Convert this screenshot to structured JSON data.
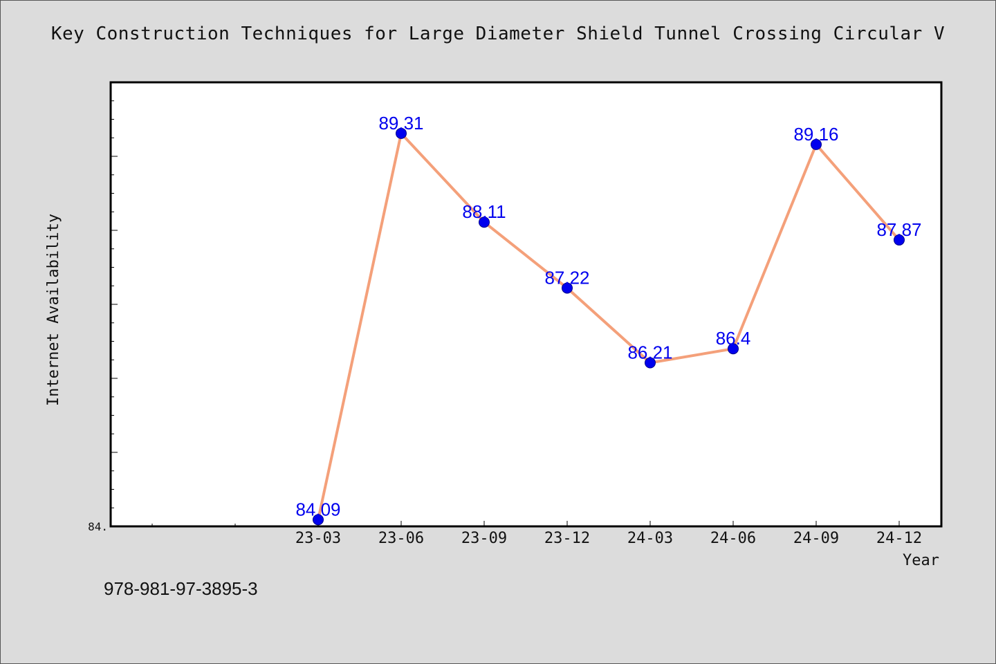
{
  "chart_data": {
    "type": "line",
    "title": "Key Construction Techniques for Large Diameter Shield Tunnel Crossing Circular V",
    "xlabel": "Year",
    "ylabel": "Internet Availability",
    "categories": [
      "23-03",
      "23-06",
      "23-09",
      "23-12",
      "24-03",
      "24-06",
      "24-09",
      "24-12"
    ],
    "series": [
      {
        "values": [
          84.09,
          89.31,
          88.11,
          87.22,
          86.21,
          86.4,
          89.16,
          87.87
        ],
        "labels": [
          "84.09",
          "89.31",
          "88.11",
          "87.22",
          "86.21",
          "86.4",
          "89.16",
          "87.87"
        ]
      }
    ],
    "ylim": [
      84.0,
      90.0
    ],
    "ytick_labels": [
      "84."
    ],
    "line_color": "#f4a07a",
    "marker_color": "#0000ee",
    "label_color": "#0000ee",
    "grid": false
  },
  "footer": {
    "isbn": "978-981-97-3895-3"
  }
}
